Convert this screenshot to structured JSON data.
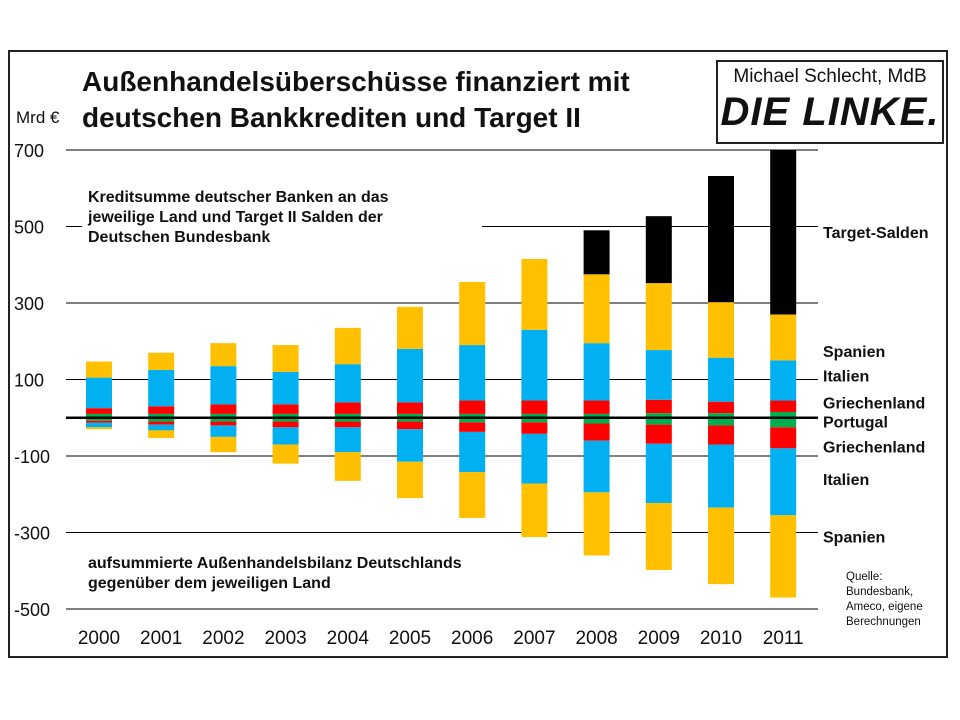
{
  "header": {
    "title_line1": "Außenhandelsüberschüsse finanziert mit",
    "title_line2": "deutschen Bankkrediten und Target II",
    "author": "Michael Schlecht, MdB",
    "party": "DIE LINKE."
  },
  "annotations": {
    "top": [
      "Kreditsumme deutscher Banken an das",
      "jeweilige Land und Target II Salden der",
      "Deutschen Bundesbank"
    ],
    "bottom": [
      "aufsummierte Außenhandelsbilanz Deutschlands",
      "gegenüber dem jeweiligen Land"
    ]
  },
  "source": [
    "Quelle:",
    "Bundesbank,",
    "Ameco, eigene",
    "Berechnungen"
  ],
  "colors": {
    "Target-Salden": "#000000",
    "Spanien": "#ffc000",
    "Italien": "#00b0f0",
    "Griechenland": "#ff0000",
    "Portugal": "#00b050",
    "gridline": "#000000"
  },
  "chart_data": {
    "type": "bar",
    "stacked": true,
    "ylabel": "Mrd €",
    "ylim": [
      -500,
      700
    ],
    "yticks": [
      -500,
      -300,
      -100,
      100,
      300,
      500,
      700
    ],
    "categories": [
      "2000",
      "2001",
      "2002",
      "2003",
      "2004",
      "2005",
      "2006",
      "2007",
      "2008",
      "2009",
      "2010",
      "2011"
    ],
    "positive_series": [
      {
        "name": "Portugal",
        "values": [
          10,
          10,
          10,
          10,
          10,
          10,
          10,
          10,
          10,
          12,
          12,
          15
        ]
      },
      {
        "name": "Griechenland",
        "values": [
          15,
          20,
          25,
          25,
          30,
          30,
          35,
          35,
          35,
          35,
          30,
          30
        ]
      },
      {
        "name": "Italien",
        "values": [
          80,
          95,
          100,
          85,
          100,
          140,
          145,
          185,
          150,
          130,
          115,
          105
        ]
      },
      {
        "name": "Spanien",
        "values": [
          42,
          45,
          60,
          70,
          95,
          110,
          165,
          185,
          180,
          175,
          145,
          120
        ]
      },
      {
        "name": "Target-Salden",
        "values": [
          0,
          0,
          0,
          0,
          0,
          0,
          0,
          0,
          115,
          175,
          330,
          430
        ]
      }
    ],
    "negative_series": [
      {
        "name": "Portugal",
        "values": [
          -8,
          -10,
          -10,
          -10,
          -10,
          -10,
          -12,
          -12,
          -15,
          -18,
          -20,
          -25
        ]
      },
      {
        "name": "Griechenland",
        "values": [
          -5,
          -8,
          -10,
          -15,
          -15,
          -20,
          -25,
          -30,
          -45,
          -50,
          -50,
          -55
        ]
      },
      {
        "name": "Italien",
        "values": [
          -12,
          -15,
          -30,
          -45,
          -65,
          -85,
          -105,
          -130,
          -135,
          -155,
          -165,
          -175
        ]
      },
      {
        "name": "Spanien",
        "values": [
          -5,
          -20,
          -40,
          -50,
          -75,
          -95,
          -120,
          -140,
          -165,
          -175,
          -200,
          -215
        ]
      }
    ],
    "series_labels": [
      {
        "text": "Target-Salden",
        "value": 485
      },
      {
        "text": "Spanien",
        "value": 175
      },
      {
        "text": "Italien",
        "value": 110
      },
      {
        "text": "Griechenland",
        "value": 40
      },
      {
        "text": "Portugal",
        "value": -10
      },
      {
        "text": "Griechenland",
        "value": -75
      },
      {
        "text": "Italien",
        "value": -160
      },
      {
        "text": "Spanien",
        "value": -310
      }
    ]
  }
}
